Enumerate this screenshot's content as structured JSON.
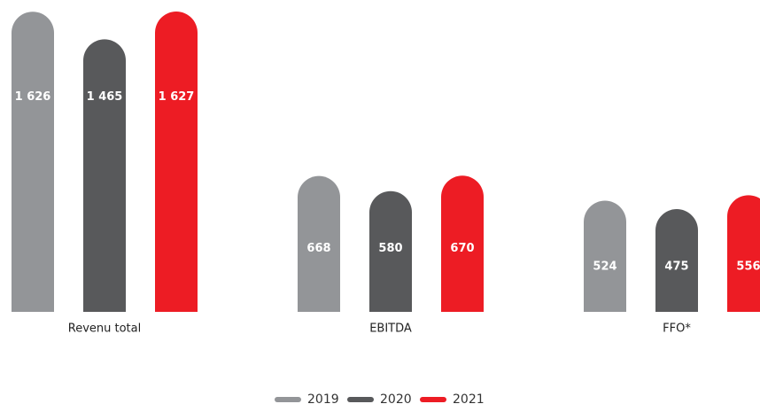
{
  "chart_data": {
    "type": "bar",
    "categories": [
      "Revenu total",
      "EBITDA",
      "FFO*"
    ],
    "series": [
      {
        "name": "2019",
        "color": "#939598",
        "values": [
          1626,
          668,
          524
        ],
        "value_labels": [
          "1 626",
          "668",
          "524"
        ]
      },
      {
        "name": "2020",
        "color": "#58595b",
        "values": [
          1465,
          580,
          475
        ],
        "value_labels": [
          "1 465",
          "580",
          "475"
        ]
      },
      {
        "name": "2021",
        "color": "#ed1c24",
        "values": [
          1627,
          670,
          556
        ],
        "value_labels": [
          "1 627",
          "670",
          "556"
        ]
      }
    ],
    "legend": "bottom"
  }
}
